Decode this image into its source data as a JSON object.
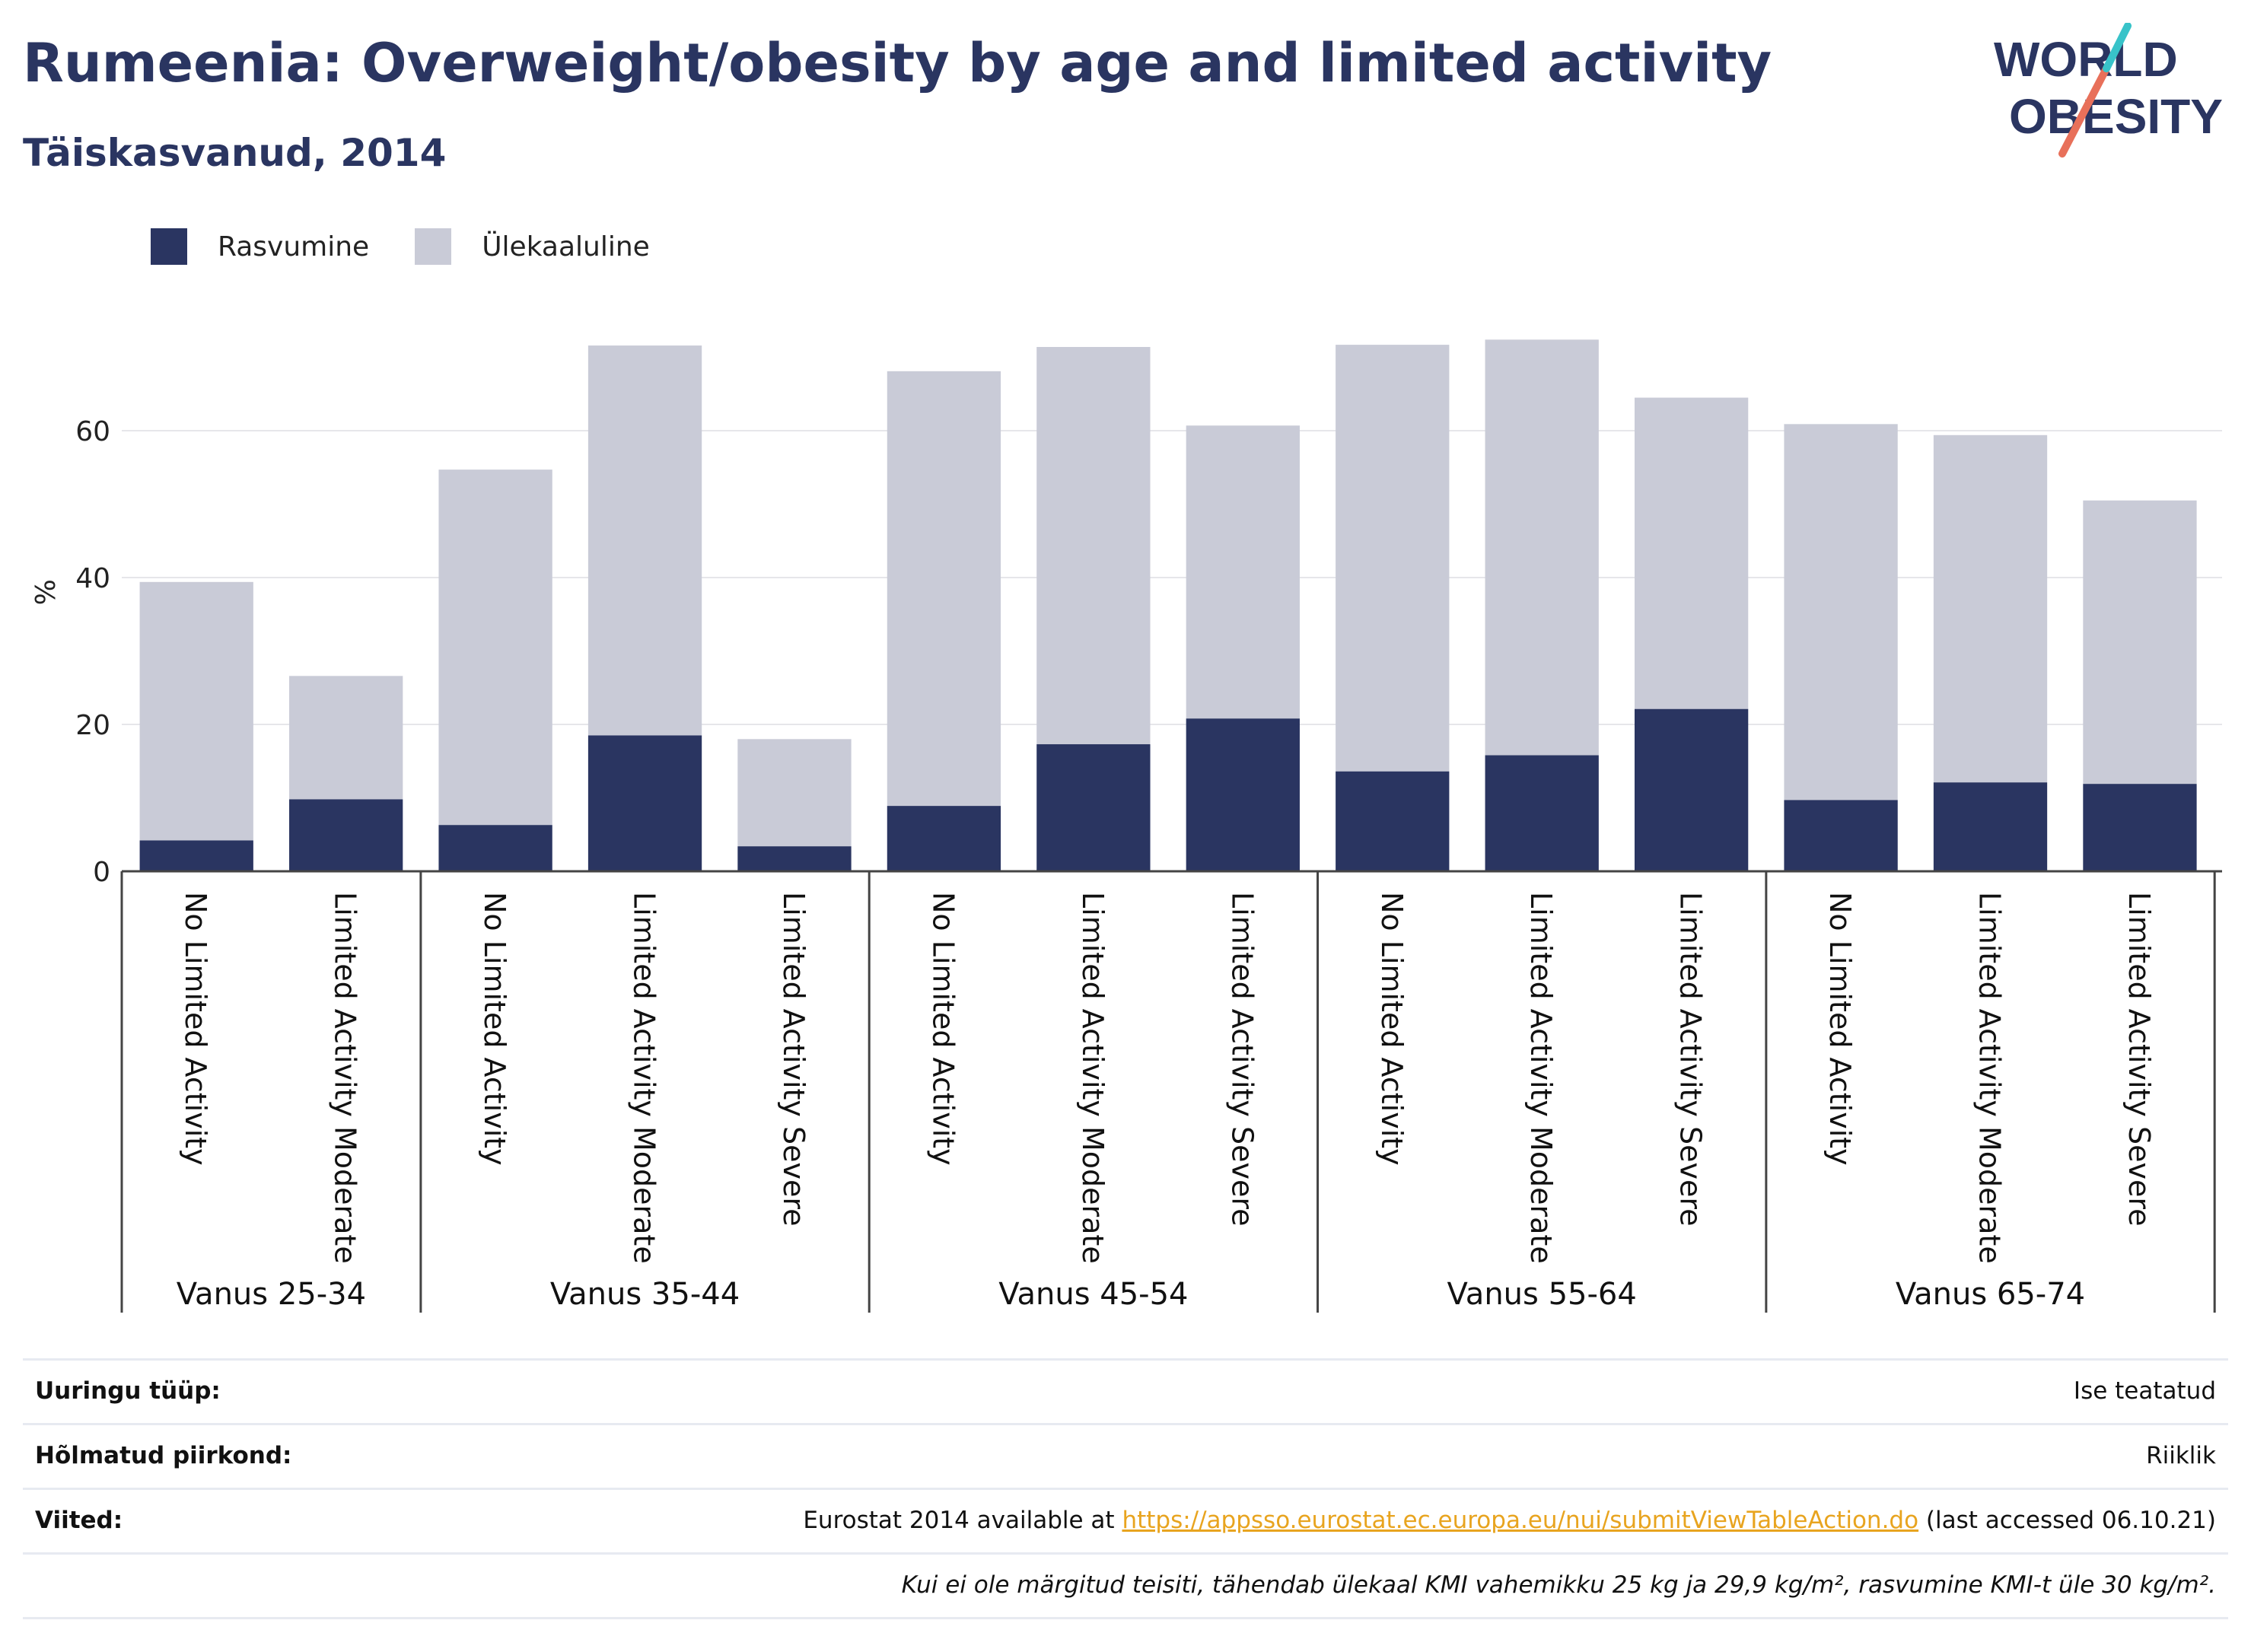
{
  "header": {
    "title": "Rumeenia: Overweight/obesity by age and limited activity",
    "subtitle": "Täiskasvanud, 2014"
  },
  "logo": {
    "line1": "WORLD",
    "line2": "OBESITY"
  },
  "colors": {
    "obese": "#2a3561",
    "overweight": "#c9cbd7",
    "title": "#2a3561",
    "link": "#e8a41f"
  },
  "legend": [
    {
      "label": "Rasvumine",
      "color": "#2a3561"
    },
    {
      "label": "Ülekaaluline",
      "color": "#c9cbd7"
    }
  ],
  "chart_data": {
    "type": "bar",
    "stacked": true,
    "ylabel": "%",
    "ylim": [
      0,
      76
    ],
    "yticks": [
      0,
      20,
      40,
      60
    ],
    "grid": true,
    "legend_position": "top-left",
    "groups": [
      {
        "label": "Vanus 25-34",
        "categories": [
          "No Limited Activity",
          "Limited Activity Moderate"
        ]
      },
      {
        "label": "Vanus 35-44",
        "categories": [
          "No Limited Activity",
          "Limited Activity Moderate",
          "Limited Activity Severe"
        ]
      },
      {
        "label": "Vanus 45-54",
        "categories": [
          "No Limited Activity",
          "Limited Activity Moderate",
          "Limited Activity Severe"
        ]
      },
      {
        "label": "Vanus 55-64",
        "categories": [
          "No Limited Activity",
          "Limited Activity Moderate",
          "Limited Activity Severe"
        ]
      },
      {
        "label": "Vanus 65-74",
        "categories": [
          "No Limited Activity",
          "Limited Activity Moderate",
          "Limited Activity Severe"
        ]
      }
    ],
    "series": [
      {
        "name": "Rasvumine",
        "values": [
          4.2,
          9.8,
          6.3,
          18.5,
          3.4,
          8.9,
          17.3,
          20.8,
          13.6,
          15.8,
          22.1,
          9.7,
          12.1,
          11.9
        ]
      },
      {
        "name": "Ülekaaluline",
        "values": [
          35.2,
          16.8,
          48.4,
          53.1,
          14.6,
          59.2,
          54.1,
          39.9,
          58.1,
          56.6,
          42.4,
          51.2,
          47.3,
          38.6
        ]
      }
    ]
  },
  "info": [
    {
      "key": "Uuringu tüüp:",
      "value": "Ise teatatud"
    },
    {
      "key": "Hõlmatud piirkond:",
      "value": "Riiklik"
    },
    {
      "key": "Viited:",
      "value_prefix": "Eurostat 2014 available at ",
      "link": "https://appsso.eurostat.ec.europa.eu/nui/submitViewTableAction.do",
      "value_suffix": " (last accessed 06.10.21)"
    },
    {
      "key": "",
      "value": "Kui ei ole märgitud teisiti, tähendab ülekaal KMI vahemikku 25 kg ja 29,9 kg/m², rasvumine KMI-t üle 30 kg/m²."
    }
  ]
}
